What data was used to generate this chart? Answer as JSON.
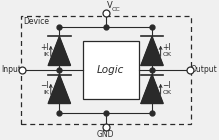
{
  "bg_color": "#f0f0f0",
  "line_color": "#2a2a2a",
  "fill_color": "#2a2a2a",
  "text_color": "#2a2a2a",
  "figsize": [
    2.19,
    1.4
  ],
  "dpi": 100,
  "device_label": "Device",
  "vcc_label": "V",
  "vcc_sub": "CC",
  "gnd_label": "GND",
  "input_label": "Input",
  "output_label": "Output",
  "logic_label": "Logic"
}
